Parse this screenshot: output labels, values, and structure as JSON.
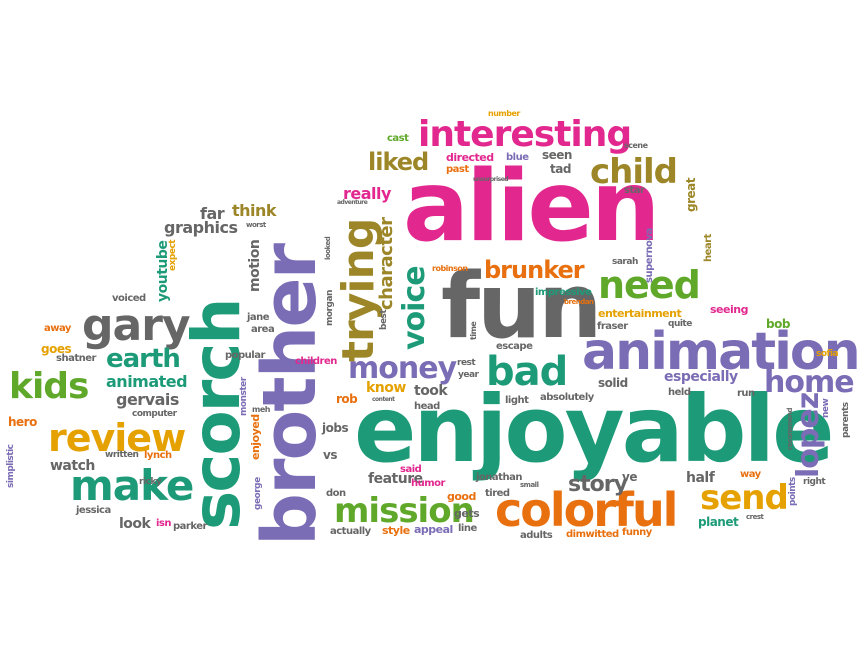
{
  "palette": {
    "pink": "#e2288f",
    "teal": "#1d9b78",
    "gray": "#666666",
    "purple": "#7b6db5",
    "orange": "#e8700f",
    "green": "#5fa829",
    "yellow": "#e5a100",
    "olive": "#9c8628"
  },
  "words": {
    "alien": "alien",
    "enjoyable": "enjoyable",
    "fun": "fun",
    "brother": "brother",
    "scorch": "scorch",
    "animation": "animation",
    "colorful": "colorful",
    "interesting": "interesting",
    "trying": "trying",
    "gary": "gary",
    "make": "make",
    "review": "review",
    "kids": "kids",
    "bad": "bad",
    "need": "need",
    "money": "money",
    "home": "home",
    "mission": "mission",
    "send": "send",
    "child": "child",
    "lopez": "lopez",
    "voice": "voice",
    "earth": "earth",
    "brunker": "brunker",
    "liked": "liked",
    "character": "character",
    "story": "story",
    "graphics": "graphics",
    "animated": "animated",
    "gervais": "gervais",
    "watch": "watch",
    "far": "far",
    "think": "think",
    "really": "really",
    "youtube": "youtube",
    "motion": "motion",
    "goes": "goes",
    "shatner": "shatner",
    "away": "away",
    "voiced": "voiced",
    "hero": "hero",
    "computer": "computer",
    "simplistic": "simplistic",
    "written": "written",
    "lynch": "lynch",
    "ricky": "ricky",
    "jessica": "jessica",
    "look": "look",
    "isn": "isn",
    "parker": "parker",
    "monster": "monster",
    "meh": "meh",
    "enjoyed": "enjoyed",
    "george": "george",
    "popular": "popular",
    "jane": "jane",
    "area": "area",
    "jobs": "jobs",
    "vs": "vs",
    "feature": "feature",
    "don": "don",
    "actually": "actually",
    "style": "style",
    "appeal": "appeal",
    "gets": "gets",
    "line": "line",
    "good": "good",
    "tired": "tired",
    "small": "small",
    "humor": "humor",
    "jonathan": "jonathan",
    "said": "said",
    "rob": "rob",
    "know": "know",
    "content": "content",
    "took": "took",
    "head": "head",
    "children": "children",
    "best": "best",
    "morgan": "morgan",
    "rest": "rest",
    "year": "year",
    "time": "time",
    "escape": "escape",
    "light": "light",
    "absolutely": "absolutely",
    "solid": "solid",
    "especially": "especially",
    "held": "held",
    "run": "run",
    "ve": "ve",
    "half": "half",
    "way": "way",
    "adults": "adults",
    "dimwitted": "dimwitted",
    "funny": "funny",
    "planet": "planet",
    "crest": "crest",
    "points": "points",
    "recommend": "recommend",
    "right": "right",
    "new": "new",
    "parents": "parents",
    "sofia": "sofia",
    "bob": "bob",
    "seeing": "seeing",
    "quite": "quite",
    "fraser": "fraser",
    "entertainment": "entertainment",
    "impressive": "impressive",
    "brendan": "brendan",
    "sarah": "sarah",
    "robinson": "robinson",
    "supernova": "supernova",
    "heart": "heart",
    "great": "great",
    "star": "star",
    "scene": "scene",
    "seen": "seen",
    "tad": "tad",
    "directed": "directed",
    "blue": "blue",
    "past": "past",
    "unsurprised": "unsurprised",
    "adventure": "adventure",
    "looked": "looked",
    "cast": "cast",
    "number": "number",
    "worst": "worst",
    "expect": "expect"
  }
}
